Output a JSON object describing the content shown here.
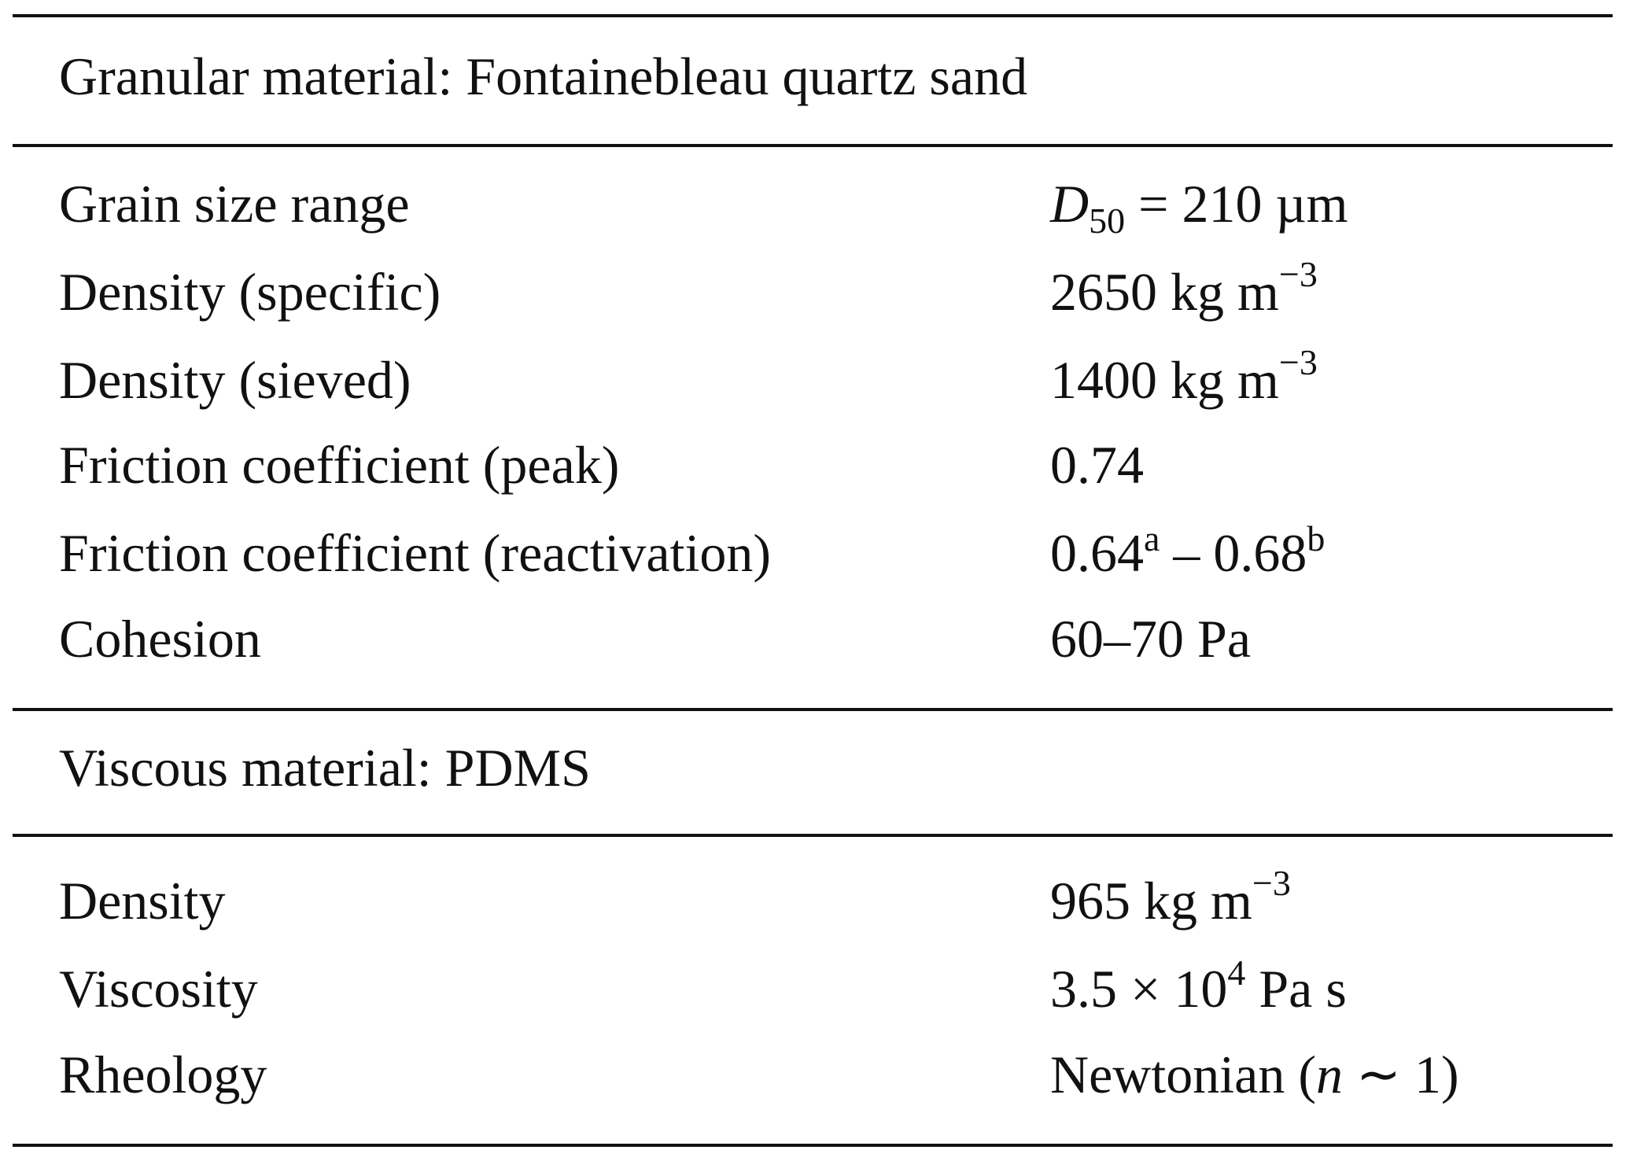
{
  "table": {
    "sections": [
      {
        "heading": "Granular material: Fontainebleau quartz sand",
        "rows": [
          {
            "label": "Grain size range",
            "value": [
              "D",
              "50",
              " = 210 µm"
            ]
          },
          {
            "label": "Density (specific)",
            "value": [
              "2650 kg m",
              "−3"
            ]
          },
          {
            "label": "Density (sieved)",
            "value": [
              "1400 kg m",
              "−3"
            ]
          },
          {
            "label": "Friction coefficient (peak)",
            "value": [
              "0.74"
            ]
          },
          {
            "label": "Friction coefficient (reactivation)",
            "value": [
              "0.64",
              "a",
              " – 0.68",
              "b"
            ]
          },
          {
            "label": "Cohesion",
            "value": [
              "60–70 Pa"
            ]
          }
        ]
      },
      {
        "heading": "Viscous material: PDMS",
        "rows": [
          {
            "label": "Density",
            "value": [
              "965 kg m",
              "−3"
            ]
          },
          {
            "label": "Viscosity",
            "value": [
              "3.5 × 10",
              "4",
              " Pa s"
            ]
          },
          {
            "label": "Rheology",
            "value": [
              "Newtonian (",
              "n",
              " ∼ 1)"
            ]
          }
        ]
      }
    ]
  }
}
